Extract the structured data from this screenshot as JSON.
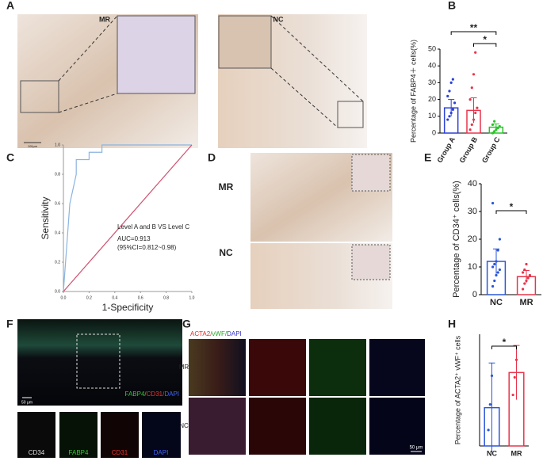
{
  "panel_labels": [
    "A",
    "B",
    "C",
    "D",
    "E",
    "F",
    "G",
    "H"
  ],
  "panel_a": {
    "labels": [
      "MR",
      "NC"
    ],
    "scale_bar": "100μm"
  },
  "panel_d": {
    "labels": [
      "MR",
      "NC"
    ]
  },
  "panel_f": {
    "stain_parts": [
      {
        "text": "FABP4/",
        "color": "#3c3"
      },
      {
        "text": "CD31/",
        "color": "#e33"
      },
      {
        "text": "DAPI",
        "color": "#46f"
      }
    ],
    "channels": [
      {
        "text": "CD34",
        "color": "#ddd"
      },
      {
        "text": "FABP4",
        "color": "#3c3"
      },
      {
        "text": "CD31",
        "color": "#e33"
      },
      {
        "text": "DAPI",
        "color": "#46f"
      }
    ],
    "scale_bar": "50 μm"
  },
  "panel_g": {
    "stain_parts": [
      {
        "text": "ACTA2/",
        "color": "#e22"
      },
      {
        "text": "vWF/",
        "color": "#2a2"
      },
      {
        "text": "DAPI",
        "color": "#33c"
      }
    ],
    "rows": [
      "MR",
      "NC"
    ],
    "scale_bar": "50 μm"
  },
  "chart_data": [
    {
      "type": "bar",
      "ylabel": "Percentage of FABP4＋ cells(%)",
      "categories": [
        "Group A",
        "Group B",
        "Group C"
      ],
      "values": [
        15,
        13.5,
        3.5
      ],
      "errors": [
        5,
        7.5,
        2
      ],
      "colors": [
        "#2b3fd8",
        "#e8344a",
        "#28c428"
      ],
      "points": [
        [
          8,
          10,
          12,
          14,
          18,
          22,
          25,
          30,
          32
        ],
        [
          2,
          5,
          8,
          12,
          15,
          20,
          27,
          35,
          48
        ],
        [
          0,
          1,
          2,
          3,
          4,
          5,
          7
        ]
      ],
      "ylim": [
        0,
        50
      ],
      "yticks": [
        0,
        10,
        20,
        30,
        40,
        50
      ],
      "annotations": [
        "**",
        "*"
      ]
    },
    {
      "type": "line",
      "xlabel": "1-Specificity",
      "ylabel": "Sensitivity",
      "series": [
        {
          "color": "#8ab4e0",
          "x": [
            0,
            0.05,
            0.1,
            0.1,
            0.2,
            0.2,
            0.3,
            0.3,
            1
          ],
          "values": [
            0,
            0.6,
            0.8,
            0.9,
            0.9,
            0.95,
            0.95,
            1,
            1
          ]
        },
        {
          "color": "#d0506e",
          "x": [
            0,
            1
          ],
          "values": [
            0,
            1
          ]
        }
      ],
      "xlim": [
        0,
        1
      ],
      "ylim": [
        0,
        1
      ],
      "xticks": [
        {
          "value": 0,
          "label": "0.0"
        },
        0.2,
        0.4,
        0.6,
        0.8,
        {
          "value": 1,
          "label": "1.0"
        }
      ],
      "yticks": [
        {
          "value": 0,
          "label": "0.0"
        },
        0.2,
        0.4,
        0.6,
        0.8,
        {
          "value": 1,
          "label": "1.0"
        }
      ],
      "annotations": [
        "Level A and B VS Level C",
        "AUC=0.913",
        "(95%CI=0.812~0.98)"
      ]
    },
    {
      "type": "bar",
      "ylabel": "Percentage of CD34⁺ cells(%)",
      "categories": [
        "NC",
        "MR"
      ],
      "values": [
        12,
        6.5
      ],
      "errors": [
        4.5,
        2.2
      ],
      "colors": [
        "#2b56d8",
        "#e8344a"
      ],
      "points": [
        [
          3,
          5,
          7,
          8,
          9,
          10,
          11,
          12,
          16,
          20,
          33
        ],
        [
          2,
          4,
          5,
          6,
          7,
          8,
          9,
          11
        ]
      ],
      "ylim": [
        0,
        40
      ],
      "yticks": [
        0,
        10,
        20,
        30,
        40
      ],
      "annotations": [
        "*"
      ]
    },
    {
      "type": "bar",
      "ylabel": "Percentage of ACTA2⁺ vWF⁺ cells",
      "categories": [
        "NC",
        "MR"
      ],
      "values": [
        2.4,
        4.6
      ],
      "errors": [
        2.8,
        1.7
      ],
      "colors": [
        "#2b56d8",
        "#e8344a"
      ],
      "points": [
        [
          1,
          2.6,
          4.4
        ],
        [
          3.2,
          4.3,
          5.4
        ]
      ],
      "ylim": [
        0,
        7
      ],
      "annotations": [
        "*"
      ]
    }
  ]
}
